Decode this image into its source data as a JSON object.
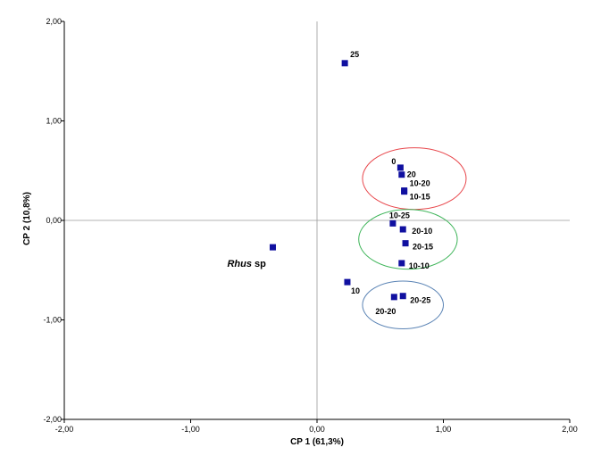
{
  "chart_data": {
    "type": "scatter",
    "title": "",
    "xlabel": "CP 1 (61,3%)",
    "ylabel": "CP 2 (10,8%)",
    "xlim": [
      -2,
      2
    ],
    "ylim": [
      -2,
      2
    ],
    "grid": false,
    "zero_lines": true,
    "x_ticks": [
      {
        "value": -2,
        "label": "-2,00"
      },
      {
        "value": -1,
        "label": "-1,00"
      },
      {
        "value": 0,
        "label": "0,00"
      },
      {
        "value": 1,
        "label": "1,00"
      },
      {
        "value": 2,
        "label": "2,00"
      }
    ],
    "y_ticks": [
      {
        "value": -2,
        "label": "-2,00"
      },
      {
        "value": -1,
        "label": "-1,00"
      },
      {
        "value": 0,
        "label": "0,00"
      },
      {
        "value": 1,
        "label": "1,00"
      },
      {
        "value": 2,
        "label": "2,00"
      }
    ],
    "marker_color": "#1010a0",
    "points": [
      {
        "label": "25",
        "x": 0.22,
        "y": 1.58
      },
      {
        "label": "0",
        "x": 0.66,
        "y": 0.53
      },
      {
        "label": "20",
        "x": 0.67,
        "y": 0.46
      },
      {
        "label": "10-20",
        "x": 0.69,
        "y": 0.3
      },
      {
        "label": "10-15",
        "x": 0.69,
        "y": 0.29
      },
      {
        "label": "10-25",
        "x": 0.6,
        "y": -0.03
      },
      {
        "label": "20-10",
        "x": 0.68,
        "y": -0.09
      },
      {
        "label": "20-15",
        "x": 0.7,
        "y": -0.23
      },
      {
        "label": "10-10",
        "x": 0.67,
        "y": -0.43
      },
      {
        "label": "Rhus sp",
        "italic_part": "Rhus",
        "normal_part": " sp",
        "x": -0.35,
        "y": -0.27
      },
      {
        "label": "10",
        "x": 0.24,
        "y": -0.62
      },
      {
        "label": "20-20",
        "x": 0.61,
        "y": -0.77
      },
      {
        "label": "20-25",
        "x": 0.68,
        "y": -0.76
      }
    ],
    "groups": [
      {
        "color": "#e8474c",
        "center": [
          0.77,
          0.42
        ],
        "radius": [
          0.41,
          0.31
        ]
      },
      {
        "color": "#3fb55a",
        "center": [
          0.72,
          -0.19
        ],
        "radius": [
          0.39,
          0.3
        ]
      },
      {
        "color": "#5b84b5",
        "center": [
          0.68,
          -0.85
        ],
        "radius": [
          0.32,
          0.24
        ]
      }
    ]
  }
}
